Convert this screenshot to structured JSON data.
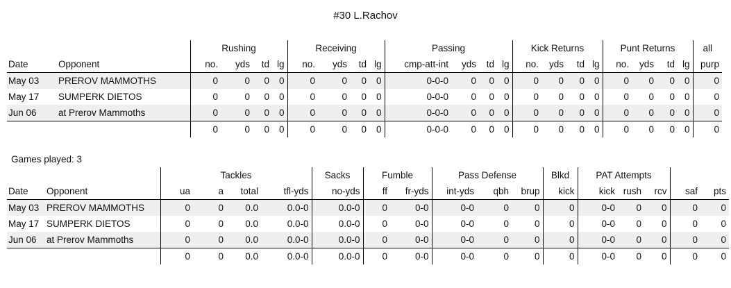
{
  "title": "#30 L.Rachov",
  "games_played": "Games played: 3",
  "offense": {
    "groups": [
      "Rushing",
      "Receiving",
      "Passing",
      "Kick Returns",
      "Punt Returns",
      "all"
    ],
    "headers": [
      "Date",
      "Opponent",
      "no.",
      "yds",
      "td",
      "lg",
      "no.",
      "yds",
      "td",
      "lg",
      "cmp-att-int",
      "yds",
      "td",
      "lg",
      "no.",
      "yds",
      "td",
      "lg",
      "no.",
      "yds",
      "td",
      "lg",
      "purp"
    ],
    "rows": [
      [
        "May 03",
        "PREROV MAMMOTHS",
        "0",
        "0",
        "0",
        "0",
        "0",
        "0",
        "0",
        "0",
        "0-0-0",
        "0",
        "0",
        "0",
        "0",
        "0",
        "0",
        "0",
        "0",
        "0",
        "0",
        "0",
        "0"
      ],
      [
        "May 17",
        "SUMPERK DIETOS",
        "0",
        "0",
        "0",
        "0",
        "0",
        "0",
        "0",
        "0",
        "0-0-0",
        "0",
        "0",
        "0",
        "0",
        "0",
        "0",
        "0",
        "0",
        "0",
        "0",
        "0",
        "0"
      ],
      [
        "Jun 06",
        "at Prerov Mammoths",
        "0",
        "0",
        "0",
        "0",
        "0",
        "0",
        "0",
        "0",
        "0-0-0",
        "0",
        "0",
        "0",
        "0",
        "0",
        "0",
        "0",
        "0",
        "0",
        "0",
        "0",
        "0"
      ]
    ],
    "total": [
      "",
      "",
      "0",
      "0",
      "0",
      "0",
      "0",
      "0",
      "0",
      "0",
      "0-0-0",
      "0",
      "0",
      "0",
      "0",
      "0",
      "0",
      "0",
      "0",
      "0",
      "0",
      "0",
      "0"
    ]
  },
  "defense": {
    "groups": [
      "Tackles",
      "Sacks",
      "Fumble",
      "Pass Defense",
      "Blkd",
      "PAT Attempts"
    ],
    "headers": [
      "Date",
      "Opponent",
      "ua",
      "a",
      "total",
      "tfl-yds",
      "no-yds",
      "ff",
      "fr-yds",
      "int-yds",
      "qbh",
      "brup",
      "kick",
      "kick",
      "rush",
      "rcv",
      "saf",
      "pts"
    ],
    "rows": [
      [
        "May 03",
        "PREROV MAMMOTHS",
        "0",
        "0",
        "0.0",
        "0.0-0",
        "0.0-0",
        "0",
        "0-0",
        "0-0",
        "0",
        "0",
        "0",
        "0-0",
        "0",
        "0",
        "0",
        "0"
      ],
      [
        "May 17",
        "SUMPERK DIETOS",
        "0",
        "0",
        "0.0",
        "0.0-0",
        "0.0-0",
        "0",
        "0-0",
        "0-0",
        "0",
        "0",
        "0",
        "0-0",
        "0",
        "0",
        "0",
        "0"
      ],
      [
        "Jun 06",
        "at Prerov Mammoths",
        "0",
        "0",
        "0.0",
        "0.0-0",
        "0.0-0",
        "0",
        "0-0",
        "0-0",
        "0",
        "0",
        "0",
        "0-0",
        "0",
        "0",
        "0",
        "0"
      ]
    ],
    "total": [
      "",
      "",
      "0",
      "0",
      "0.0",
      "0.0-0",
      "0.0-0",
      "0",
      "0-0",
      "0-0",
      "0",
      "0",
      "0",
      "0-0",
      "0",
      "0",
      "0",
      "0"
    ]
  }
}
